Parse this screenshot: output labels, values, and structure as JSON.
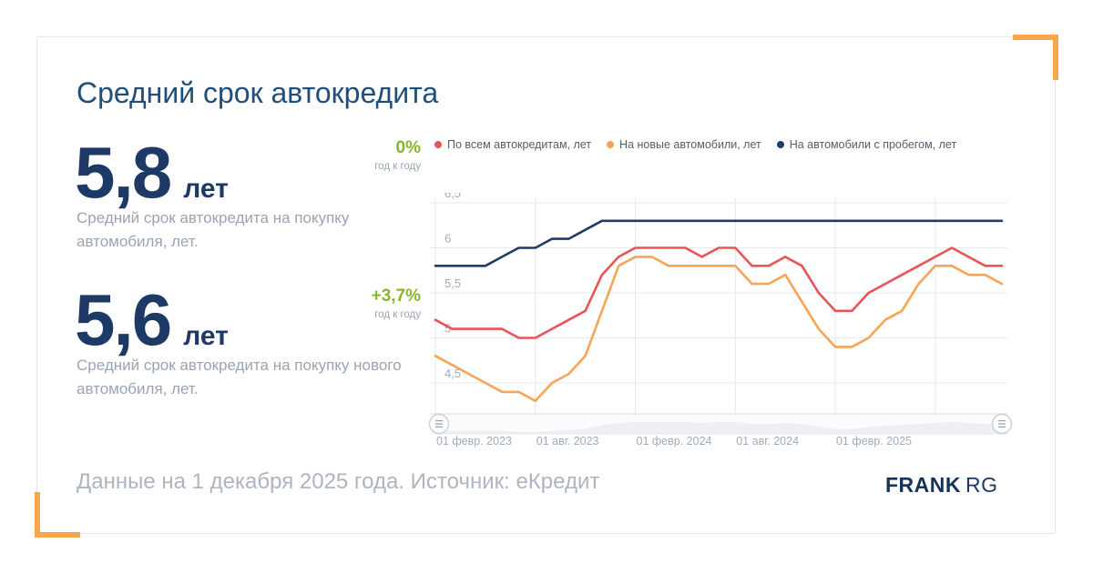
{
  "card": {
    "title": "Средний срок автокредита",
    "stats": [
      {
        "value": "5,8",
        "unit": "лет",
        "desc": "Средний срок автокредита на покупку автомобиля, лет.",
        "yoy": "0%",
        "yoy_note": "год к году"
      },
      {
        "value": "5,6",
        "unit": "лет",
        "desc": "Средний срок автокредита на покупку нового автомобиля, лет.",
        "yoy": "+3,7%",
        "yoy_note": "год к году"
      }
    ],
    "footer": "Данные на 1 декабря 2025 года. Источник: еКредит",
    "logo": {
      "bold": "FRANK",
      "light": "RG"
    }
  },
  "colors": {
    "accent_orange_bracket": "#f9a64f",
    "title_blue": "#1f4e7a",
    "stat_navy": "#1d3a66",
    "green_yoy": "#86b72b",
    "grid": "#e3e8f1",
    "axis_label": "#9fabbb",
    "series_all": "#e85457",
    "series_new": "#f7a456",
    "series_used": "#1e3d66"
  },
  "chart_data": {
    "type": "line",
    "title": "Средний срок автокредита",
    "x": [
      "февр. 2023",
      "март 2023",
      "апр. 2023",
      "май 2023",
      "июнь 2023",
      "июль 2023",
      "авг. 2023",
      "сент. 2023",
      "окт. 2023",
      "нояб. 2023",
      "дек. 2023",
      "янв. 2024",
      "февр. 2024",
      "март 2024",
      "апр. 2024",
      "май 2024",
      "июнь 2024",
      "июль 2024",
      "авг. 2024",
      "сент. 2024",
      "окт. 2024",
      "нояб. 2024",
      "дек. 2024",
      "янв. 2025",
      "февр. 2025",
      "март 2025",
      "апр. 2025",
      "май 2025",
      "июнь 2025",
      "июль 2025",
      "авг. 2025",
      "сент. 2025",
      "окт. 2025",
      "нояб. 2025",
      "дек. 2025"
    ],
    "series": [
      {
        "name": "По всем автокредитам, лет",
        "color": "#e85457",
        "values": [
          5.2,
          5.1,
          5.1,
          5.1,
          5.1,
          5.0,
          5.0,
          5.1,
          5.2,
          5.3,
          5.7,
          5.9,
          6.0,
          6.0,
          6.0,
          6.0,
          5.9,
          6.0,
          6.0,
          5.8,
          5.8,
          5.9,
          5.8,
          5.5,
          5.3,
          5.3,
          5.5,
          5.6,
          5.7,
          5.8,
          5.9,
          6.0,
          5.9,
          5.8,
          5.8
        ]
      },
      {
        "name": "На новые автомобили, лет",
        "color": "#f7a456",
        "values": [
          4.8,
          4.7,
          4.6,
          4.5,
          4.4,
          4.4,
          4.3,
          4.5,
          4.6,
          4.8,
          5.3,
          5.8,
          5.9,
          5.9,
          5.8,
          5.8,
          5.8,
          5.8,
          5.8,
          5.6,
          5.6,
          5.7,
          5.4,
          5.1,
          4.9,
          4.9,
          5.0,
          5.2,
          5.3,
          5.6,
          5.8,
          5.8,
          5.7,
          5.7,
          5.6
        ]
      },
      {
        "name": "На автомобили с пробегом, лет",
        "color": "#1e3d66",
        "values": [
          5.8,
          5.8,
          5.8,
          5.8,
          5.9,
          6.0,
          6.0,
          6.1,
          6.1,
          6.2,
          6.3,
          6.3,
          6.3,
          6.3,
          6.3,
          6.3,
          6.3,
          6.3,
          6.3,
          6.3,
          6.3,
          6.3,
          6.3,
          6.3,
          6.3,
          6.3,
          6.3,
          6.3,
          6.3,
          6.3,
          6.3,
          6.3,
          6.3,
          6.3,
          6.3
        ]
      }
    ],
    "yticks": [
      {
        "v": 6.5,
        "label": "6,5"
      },
      {
        "v": 6.0,
        "label": "6"
      },
      {
        "v": 5.5,
        "label": "5,5"
      },
      {
        "v": 5.0,
        "label": "5"
      },
      {
        "v": 4.5,
        "label": "4,5"
      }
    ],
    "xticks": [
      {
        "i": 0,
        "label": "01 февр. 2023"
      },
      {
        "i": 6,
        "label": "01 авг. 2023"
      },
      {
        "i": 12,
        "label": "01 февр. 2024"
      },
      {
        "i": 18,
        "label": "01 авг. 2024"
      },
      {
        "i": 24,
        "label": "01 февр. 2025"
      },
      {
        "i": 30,
        "label": ""
      }
    ],
    "ylim": [
      4.15,
      6.6
    ],
    "grid": true,
    "legend_position": "top",
    "xlabel": "",
    "ylabel": ""
  }
}
